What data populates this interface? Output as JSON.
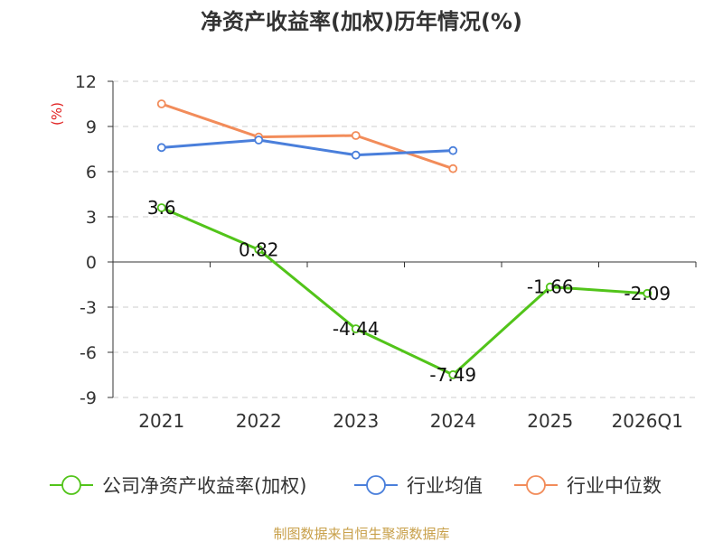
{
  "chart_data": {
    "type": "line",
    "title": "净资产收益率(加权)历年情况(%)",
    "ylabel": "(%)",
    "xlabel": "",
    "categories": [
      "2021",
      "2022",
      "2023",
      "2024",
      "2025",
      "2026Q1"
    ],
    "yticks": [
      12,
      9,
      6,
      3,
      0,
      -3,
      -6,
      -9
    ],
    "ylim": [
      -9,
      12
    ],
    "grid": true,
    "legend_position": "bottom",
    "series": [
      {
        "name": "公司净资产收益率(加权)",
        "color": "#52c41a",
        "values": [
          3.6,
          0.82,
          -4.44,
          -7.49,
          -1.66,
          -2.09
        ],
        "labels": [
          "3.6",
          "0.82",
          "-4.44",
          "-7.49",
          "-1.66",
          "-2.09"
        ]
      },
      {
        "name": "行业均值",
        "color": "#4a7fdb",
        "values": [
          7.6,
          8.1,
          7.1,
          7.4,
          null,
          null
        ]
      },
      {
        "name": "行业中位数",
        "color": "#f28c5a",
        "values": [
          10.5,
          8.3,
          8.4,
          6.2,
          null,
          null
        ]
      }
    ]
  },
  "source": "制图数据来自恒生聚源数据库"
}
